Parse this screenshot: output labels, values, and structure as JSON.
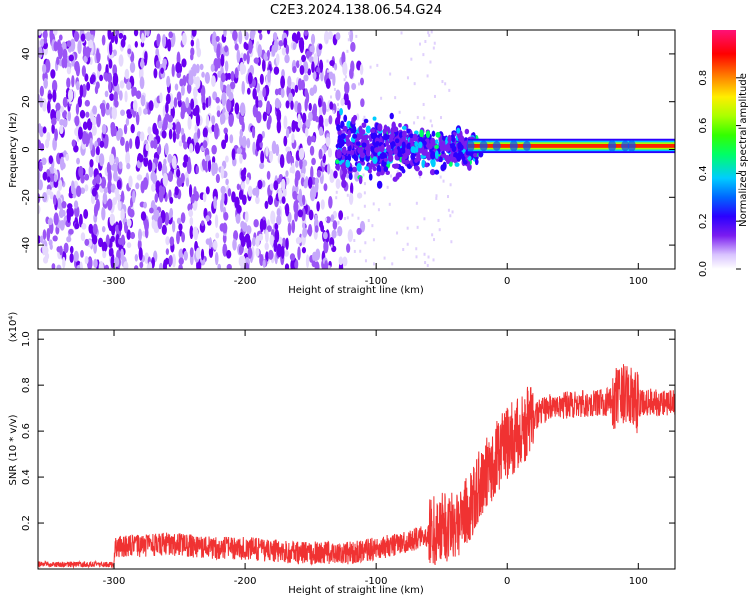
{
  "title": "C2E3.2024.138.06.54.G24",
  "chart_data": [
    {
      "type": "heatmap",
      "xlabel": "Height of straight line (km)",
      "ylabel": "Frequency (Hz)",
      "xlim": [
        -358,
        128
      ],
      "ylim": [
        -50,
        50
      ],
      "xticks": [
        -300,
        -200,
        -100,
        0,
        100
      ],
      "yticks": [
        -40,
        -20,
        0,
        20,
        40
      ],
      "colorbar": {
        "label": "Normalized spectral amplitude",
        "range": [
          0.0,
          1.0
        ],
        "ticks": [
          "0.0",
          "0.2",
          "0.4",
          "0.6",
          "0.8"
        ],
        "colormap": [
          "#ffffff",
          "#d9c3ff",
          "#7a1cf0",
          "#2b00ff",
          "#0066ff",
          "#00ccff",
          "#00ff66",
          "#33ff00",
          "#aaff00",
          "#ffee00",
          "#ff8800",
          "#ff0000",
          "#ff1177"
        ]
      },
      "features": [
        {
          "x_range": [
            -358,
            -120
          ],
          "description_level": 0.15
        },
        {
          "x_range": [
            -130,
            -25
          ],
          "description_level": 0.35
        },
        {
          "x_range": [
            -25,
            128
          ],
          "center_freq": 1.5,
          "description_level": 0.9
        }
      ]
    },
    {
      "type": "line",
      "xlabel": "Height of straight line (km)",
      "ylabel": "SNR (10 * v/v)",
      "y_multiplier": "(x10⁴)",
      "xlim": [
        -358,
        128
      ],
      "ylim": [
        0,
        1.04
      ],
      "xticks": [
        -300,
        -200,
        -100,
        0,
        100
      ],
      "yticks": [
        0.2,
        0.4,
        0.6,
        0.8,
        1.0
      ],
      "series": [
        {
          "color": "#f03232",
          "x": [
            -358,
            -340,
            -320,
            -300,
            -299,
            -280,
            -260,
            -240,
            -220,
            -200,
            -180,
            -160,
            -140,
            -120,
            -100,
            -80,
            -60,
            -40,
            -30,
            -20,
            -10,
            0,
            10,
            20,
            30,
            40,
            60,
            80,
            90,
            100,
            110,
            128
          ],
          "y": [
            0.02,
            0.02,
            0.02,
            0.02,
            0.1,
            0.1,
            0.11,
            0.1,
            0.09,
            0.09,
            0.08,
            0.07,
            0.07,
            0.07,
            0.09,
            0.11,
            0.15,
            0.2,
            0.25,
            0.38,
            0.47,
            0.55,
            0.6,
            0.66,
            0.7,
            0.71,
            0.72,
            0.73,
            0.76,
            0.72,
            0.73,
            0.72
          ]
        }
      ]
    }
  ]
}
